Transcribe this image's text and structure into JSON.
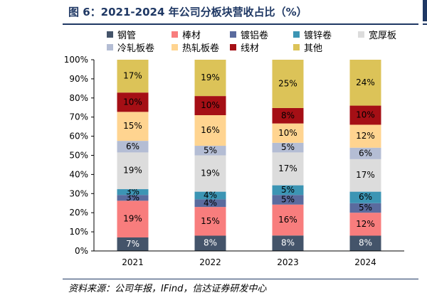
{
  "header": {
    "title": "图 6：2021-2024 年公司分板块营收占比（%）"
  },
  "source": "资料来源：公司年报，IFind，信达证券研发中心",
  "chart_data": {
    "type": "bar",
    "stacked": true,
    "categories": [
      "2021",
      "2022",
      "2023",
      "2024"
    ],
    "ylim": [
      0,
      100
    ],
    "yticks": [
      "0%",
      "10%",
      "20%",
      "30%",
      "40%",
      "50%",
      "60%",
      "70%",
      "80%",
      "90%",
      "100%"
    ],
    "grid": false,
    "legend_position": "top",
    "series": [
      {
        "name": "钢管",
        "color": "#44546a",
        "label_color": "#ffffff",
        "values": [
          7,
          8,
          8,
          8
        ]
      },
      {
        "name": "棒材",
        "color": "#f87d7d",
        "label_color": "#000000",
        "values": [
          19,
          15,
          16,
          12
        ]
      },
      {
        "name": "镀铝卷",
        "color": "#5a6b9e",
        "label_color": "#000000",
        "values": [
          3,
          4,
          5,
          5
        ]
      },
      {
        "name": "镀锌卷",
        "color": "#3c95b4",
        "label_color": "#000000",
        "values": [
          3,
          4,
          5,
          6
        ]
      },
      {
        "name": "宽厚板",
        "color": "#dcdcdc",
        "label_color": "#000000",
        "values": [
          19,
          19,
          17,
          17
        ]
      },
      {
        "name": "冷轧板卷",
        "color": "#b4bdd4",
        "label_color": "#000000",
        "values": [
          6,
          5,
          5,
          6
        ]
      },
      {
        "name": "热轧板卷",
        "color": "#ffd490",
        "label_color": "#000000",
        "values": [
          15,
          16,
          10,
          12
        ]
      },
      {
        "name": "线材",
        "color": "#a50f15",
        "label_color": "#000000",
        "values": [
          10,
          10,
          8,
          10
        ]
      },
      {
        "name": "其他",
        "color": "#dcc358",
        "label_color": "#000000",
        "values": [
          17,
          19,
          25,
          24
        ]
      }
    ],
    "labels": [
      [
        "7%",
        "19%",
        "3%",
        "3%",
        "19%",
        "6%",
        "15%",
        "10%",
        "17%"
      ],
      [
        "8%",
        "15%",
        "4%",
        "4%",
        "19%",
        "5%",
        "16%",
        "10%",
        "19%"
      ],
      [
        "8%",
        "16%",
        "5%",
        "5%",
        "17%",
        "5%",
        "10%",
        "8%",
        "25%"
      ],
      [
        "8%",
        "12%",
        "5%",
        "6%",
        "17%",
        "6%",
        "12%",
        "10%",
        "24%"
      ]
    ]
  }
}
